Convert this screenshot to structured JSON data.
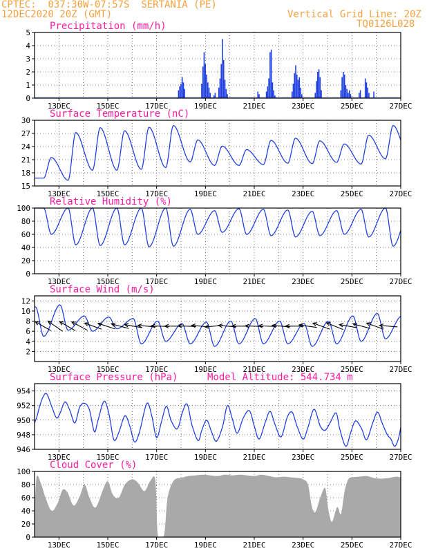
{
  "header": {
    "line1": "CPTEC:  037:30W-07:57S  SERTANIA (PE)",
    "line2": "12DEC2020 20Z (GMT)",
    "grid_note": "Vertical Grid Line: 20Z",
    "code": "TQ0126L028"
  },
  "colors": {
    "header": "#f5a040",
    "title": "#ff1aa0",
    "series": "#2040e0",
    "cloud": "#a9a9a9",
    "wind_arrow": "#000000",
    "grid": "#000000"
  },
  "x_axis": {
    "start_day": 12.0,
    "end_day": 27.0,
    "tick_labels": [
      {
        "day": 13,
        "label": "13DEC"
      },
      {
        "day": 15,
        "label": "15DEC"
      },
      {
        "day": 17,
        "label": "17DEC"
      },
      {
        "day": 19,
        "label": "19DEC"
      },
      {
        "day": 21,
        "label": "21DEC"
      },
      {
        "day": 23,
        "label": "23DEC"
      },
      {
        "day": 25,
        "label": "25DEC"
      },
      {
        "day": 27,
        "label": "27DEC"
      }
    ]
  },
  "chart_data": [
    {
      "id": "precip",
      "type": "bar",
      "title": "Precipitation (mm/h)",
      "ylim": [
        0,
        5
      ],
      "yticks": [
        0,
        1,
        2,
        3,
        4,
        5
      ],
      "points": [
        [
          17.9,
          0.6
        ],
        [
          17.95,
          0.9
        ],
        [
          18.0,
          1.1
        ],
        [
          18.05,
          1.6
        ],
        [
          18.1,
          1.2
        ],
        [
          18.15,
          0.7
        ],
        [
          18.85,
          1.1
        ],
        [
          18.9,
          2.4
        ],
        [
          18.95,
          3.5
        ],
        [
          19.0,
          2.6
        ],
        [
          19.05,
          1.8
        ],
        [
          19.1,
          1.2
        ],
        [
          19.15,
          0.8
        ],
        [
          19.2,
          0.4
        ],
        [
          19.35,
          0.2
        ],
        [
          19.4,
          0.4
        ],
        [
          19.55,
          0.8
        ],
        [
          19.6,
          1.5
        ],
        [
          19.65,
          2.6
        ],
        [
          19.7,
          4.5
        ],
        [
          19.75,
          2.9
        ],
        [
          19.8,
          1.4
        ],
        [
          19.85,
          0.7
        ],
        [
          19.9,
          0.3
        ],
        [
          21.15,
          0.5
        ],
        [
          21.2,
          0.3
        ],
        [
          21.5,
          0.5
        ],
        [
          21.55,
          0.9
        ],
        [
          21.6,
          1.5
        ],
        [
          21.65,
          3.5
        ],
        [
          21.7,
          3.7
        ],
        [
          21.75,
          1.2
        ],
        [
          21.8,
          0.6
        ],
        [
          21.85,
          0.2
        ],
        [
          22.55,
          0.5
        ],
        [
          22.6,
          1.1
        ],
        [
          22.65,
          1.9
        ],
        [
          22.7,
          2.5
        ],
        [
          22.75,
          1.8
        ],
        [
          22.8,
          1.4
        ],
        [
          22.85,
          1.6
        ],
        [
          22.9,
          0.8
        ],
        [
          22.95,
          0.3
        ],
        [
          23.5,
          0.4
        ],
        [
          23.55,
          1.3
        ],
        [
          23.6,
          2.0
        ],
        [
          23.65,
          2.2
        ],
        [
          23.7,
          1.6
        ],
        [
          23.75,
          0.6
        ],
        [
          24.55,
          0.6
        ],
        [
          24.6,
          1.6
        ],
        [
          24.65,
          2.0
        ],
        [
          24.7,
          1.8
        ],
        [
          24.75,
          1.0
        ],
        [
          24.8,
          0.7
        ],
        [
          24.85,
          0.4
        ],
        [
          24.9,
          0.6
        ],
        [
          24.95,
          0.3
        ],
        [
          25.3,
          0.4
        ],
        [
          25.35,
          0.6
        ],
        [
          25.55,
          1.5
        ],
        [
          25.6,
          1.2
        ],
        [
          25.65,
          0.8
        ],
        [
          25.7,
          0.4
        ],
        [
          25.9,
          0.5
        ]
      ]
    },
    {
      "id": "temp",
      "type": "line",
      "title": "Surface Temperature (nC)",
      "ylim": [
        15,
        30
      ],
      "yticks": [
        15,
        18,
        21,
        24,
        27,
        30
      ],
      "profile": {
        "min_hour": 9.0,
        "max_hour": 16.5
      },
      "daily": [
        {
          "day": 12,
          "min": 16.8,
          "max": 21.5
        },
        {
          "day": 13,
          "min": 16.3,
          "max": 27.2
        },
        {
          "day": 14,
          "min": 18.6,
          "max": 28.3
        },
        {
          "day": 15,
          "min": 18.6,
          "max": 27.6
        },
        {
          "day": 16,
          "min": 18.8,
          "max": 28.4
        },
        {
          "day": 17,
          "min": 19.2,
          "max": 28.8
        },
        {
          "day": 18,
          "min": 20.5,
          "max": 25.5
        },
        {
          "day": 19,
          "min": 19.7,
          "max": 24.1
        },
        {
          "day": 20,
          "min": 19.7,
          "max": 23.3
        },
        {
          "day": 21,
          "min": 19.9,
          "max": 25.4
        },
        {
          "day": 22,
          "min": 20.2,
          "max": 25.9
        },
        {
          "day": 23,
          "min": 20.1,
          "max": 25.3
        },
        {
          "day": 24,
          "min": 20.4,
          "max": 24.6
        },
        {
          "day": 25,
          "min": 20.0,
          "max": 26.6
        },
        {
          "day": 26,
          "min": 21.2,
          "max": 28.8
        },
        {
          "day": 27,
          "min": 21.0,
          "max": 23.0
        }
      ]
    },
    {
      "id": "rh",
      "type": "line",
      "title": "Relative Humidity (%)",
      "ylim": [
        0,
        100
      ],
      "yticks": [
        0,
        20,
        40,
        60,
        80,
        100
      ],
      "profile": {
        "min_hour": 16.5,
        "max_hour": 9.0
      },
      "daily": [
        {
          "day": 12,
          "min": 60,
          "max": 100
        },
        {
          "day": 13,
          "min": 44,
          "max": 100
        },
        {
          "day": 14,
          "min": 43,
          "max": 100
        },
        {
          "day": 15,
          "min": 44,
          "max": 100
        },
        {
          "day": 16,
          "min": 41,
          "max": 100
        },
        {
          "day": 17,
          "min": 42,
          "max": 100
        },
        {
          "day": 18,
          "min": 60,
          "max": 98
        },
        {
          "day": 19,
          "min": 63,
          "max": 96
        },
        {
          "day": 20,
          "min": 60,
          "max": 99
        },
        {
          "day": 21,
          "min": 58,
          "max": 98
        },
        {
          "day": 22,
          "min": 56,
          "max": 97
        },
        {
          "day": 23,
          "min": 58,
          "max": 95
        },
        {
          "day": 24,
          "min": 60,
          "max": 96
        },
        {
          "day": 25,
          "min": 56,
          "max": 98
        },
        {
          "day": 26,
          "min": 42,
          "max": 100
        },
        {
          "day": 27,
          "min": 76,
          "max": 98
        }
      ]
    },
    {
      "id": "wind",
      "type": "line",
      "title": "Surface Wind (m/s)",
      "ylim": [
        0,
        13
      ],
      "yticks": [
        2,
        4,
        6,
        8,
        10,
        12
      ],
      "y_grid": [
        2,
        4,
        6,
        8,
        10,
        12
      ],
      "profile": {
        "min_hour": 9.0,
        "max_hour": 1.0
      },
      "daily": [
        {
          "day": 12,
          "min": 5.0,
          "max": 10.8
        },
        {
          "day": 13,
          "min": 6.2,
          "max": 11.2
        },
        {
          "day": 14,
          "min": 6.0,
          "max": 9.0
        },
        {
          "day": 15,
          "min": 6.5,
          "max": 8.8
        },
        {
          "day": 16,
          "min": 3.5,
          "max": 8.5
        },
        {
          "day": 17,
          "min": 4.0,
          "max": 8.0
        },
        {
          "day": 18,
          "min": 3.5,
          "max": 7.5
        },
        {
          "day": 19,
          "min": 3.0,
          "max": 7.8
        },
        {
          "day": 20,
          "min": 3.5,
          "max": 8.0
        },
        {
          "day": 21,
          "min": 3.5,
          "max": 8.5
        },
        {
          "day": 22,
          "min": 3.5,
          "max": 8.0
        },
        {
          "day": 23,
          "min": 3.0,
          "max": 7.5
        },
        {
          "day": 24,
          "min": 3.5,
          "max": 8.0
        },
        {
          "day": 25,
          "min": 4.0,
          "max": 9.0
        },
        {
          "day": 26,
          "min": 4.5,
          "max": 9.5
        },
        {
          "day": 27,
          "min": 8.0,
          "max": 9.0
        }
      ],
      "arrows": [
        {
          "day": 12.35,
          "from_deg": 120
        },
        {
          "day": 12.85,
          "from_deg": 125
        },
        {
          "day": 13.35,
          "from_deg": 120
        },
        {
          "day": 13.85,
          "from_deg": 118
        },
        {
          "day": 14.4,
          "from_deg": 110
        },
        {
          "day": 14.95,
          "from_deg": 108
        },
        {
          "day": 15.5,
          "from_deg": 105
        },
        {
          "day": 16.05,
          "from_deg": 100
        },
        {
          "day": 16.6,
          "from_deg": 95
        },
        {
          "day": 17.15,
          "from_deg": 92
        },
        {
          "day": 17.7,
          "from_deg": 90
        },
        {
          "day": 18.25,
          "from_deg": 92
        },
        {
          "day": 18.8,
          "from_deg": 95
        },
        {
          "day": 19.35,
          "from_deg": 85
        },
        {
          "day": 19.9,
          "from_deg": 95
        },
        {
          "day": 20.45,
          "from_deg": 90
        },
        {
          "day": 21.0,
          "from_deg": 92
        },
        {
          "day": 21.55,
          "from_deg": 92
        },
        {
          "day": 22.1,
          "from_deg": 95
        },
        {
          "day": 22.65,
          "from_deg": 90
        },
        {
          "day": 23.2,
          "from_deg": 98
        },
        {
          "day": 23.75,
          "from_deg": 110
        },
        {
          "day": 24.3,
          "from_deg": 112
        },
        {
          "day": 24.85,
          "from_deg": 100
        },
        {
          "day": 25.4,
          "from_deg": 105
        },
        {
          "day": 25.95,
          "from_deg": 110
        },
        {
          "day": 26.5,
          "from_deg": 95
        }
      ]
    },
    {
      "id": "pres",
      "type": "line",
      "title": "Surface Pressure (hPa)",
      "altitude_label": "Model Altitude: 544.734 m",
      "ylim": [
        946,
        955
      ],
      "yticks": [
        946,
        948,
        950,
        952,
        954
      ],
      "points": [
        [
          12.0,
          949.6
        ],
        [
          12.1,
          950.5
        ],
        [
          12.2,
          951.8
        ],
        [
          12.35,
          953.2
        ],
        [
          12.5,
          953.6
        ],
        [
          12.7,
          951.9
        ],
        [
          12.9,
          950.3
        ],
        [
          13.05,
          951.0
        ],
        [
          13.25,
          952.5
        ],
        [
          13.45,
          951.3
        ],
        [
          13.65,
          949.6
        ],
        [
          13.85,
          951.8
        ],
        [
          14.05,
          952.3
        ],
        [
          14.25,
          951.4
        ],
        [
          14.45,
          948.4
        ],
        [
          14.6,
          950.0
        ],
        [
          14.85,
          952.6
        ],
        [
          15.05,
          950.8
        ],
        [
          15.25,
          947.3
        ],
        [
          15.45,
          948.3
        ],
        [
          15.7,
          950.6
        ],
        [
          15.9,
          949.2
        ],
        [
          16.1,
          947.0
        ],
        [
          16.3,
          948.4
        ],
        [
          16.6,
          952.3
        ],
        [
          16.8,
          950.6
        ],
        [
          17.0,
          947.6
        ],
        [
          17.2,
          949.8
        ],
        [
          17.4,
          951.9
        ],
        [
          17.6,
          949.9
        ],
        [
          17.85,
          948.8
        ],
        [
          18.05,
          951.0
        ],
        [
          18.25,
          952.2
        ],
        [
          18.45,
          949.3
        ],
        [
          18.7,
          947.2
        ],
        [
          18.85,
          948.6
        ],
        [
          19.05,
          950.0
        ],
        [
          19.25,
          948.4
        ],
        [
          19.45,
          947.1
        ],
        [
          19.7,
          949.1
        ],
        [
          19.9,
          952.0
        ],
        [
          20.1,
          950.2
        ],
        [
          20.3,
          948.2
        ],
        [
          20.55,
          950.3
        ],
        [
          20.8,
          951.3
        ],
        [
          21.0,
          949.2
        ],
        [
          21.2,
          947.4
        ],
        [
          21.45,
          949.7
        ],
        [
          21.65,
          951.2
        ],
        [
          21.85,
          949.4
        ],
        [
          22.1,
          947.7
        ],
        [
          22.35,
          950.4
        ],
        [
          22.55,
          951.1
        ],
        [
          22.75,
          949.2
        ],
        [
          23.0,
          947.4
        ],
        [
          23.2,
          949.0
        ],
        [
          23.45,
          951.5
        ],
        [
          23.7,
          949.2
        ],
        [
          23.9,
          948.6
        ],
        [
          24.1,
          949.6
        ],
        [
          24.35,
          951.0
        ],
        [
          24.5,
          948.8
        ],
        [
          24.75,
          946.4
        ],
        [
          24.95,
          948.3
        ],
        [
          25.15,
          949.9
        ],
        [
          25.4,
          948.8
        ],
        [
          25.6,
          947.3
        ],
        [
          25.85,
          949.6
        ],
        [
          26.05,
          951.1
        ],
        [
          26.25,
          949.5
        ],
        [
          26.45,
          948.0
        ],
        [
          26.6,
          947.4
        ],
        [
          26.75,
          946.4
        ],
        [
          26.9,
          947.4
        ],
        [
          27.0,
          949.0
        ]
      ]
    },
    {
      "id": "cloud",
      "type": "area",
      "title": "Cloud Cover (%)",
      "ylim": [
        0,
        100
      ],
      "yticks": [
        0,
        20,
        40,
        60,
        80,
        100
      ],
      "points": [
        [
          12.0,
          33
        ],
        [
          12.08,
          91
        ],
        [
          12.25,
          83
        ],
        [
          12.45,
          60
        ],
        [
          12.7,
          40
        ],
        [
          12.95,
          52
        ],
        [
          13.15,
          72
        ],
        [
          13.35,
          68
        ],
        [
          13.6,
          48
        ],
        [
          13.85,
          62
        ],
        [
          14.05,
          80
        ],
        [
          14.25,
          60
        ],
        [
          14.5,
          45
        ],
        [
          14.8,
          72
        ],
        [
          15.0,
          85
        ],
        [
          15.2,
          65
        ],
        [
          15.45,
          60
        ],
        [
          15.7,
          80
        ],
        [
          16.0,
          88
        ],
        [
          16.25,
          82
        ],
        [
          16.5,
          70
        ],
        [
          16.75,
          86
        ],
        [
          16.95,
          86
        ],
        [
          17.05,
          2
        ],
        [
          17.3,
          2
        ],
        [
          17.45,
          60
        ],
        [
          17.7,
          86
        ],
        [
          18.0,
          90
        ],
        [
          18.3,
          93
        ],
        [
          18.6,
          94
        ],
        [
          18.9,
          95
        ],
        [
          19.2,
          94
        ],
        [
          19.5,
          93
        ],
        [
          19.8,
          95
        ],
        [
          20.1,
          94
        ],
        [
          20.4,
          95
        ],
        [
          20.7,
          94
        ],
        [
          21.0,
          93
        ],
        [
          21.3,
          95
        ],
        [
          21.6,
          93
        ],
        [
          21.9,
          91
        ],
        [
          22.2,
          92
        ],
        [
          22.5,
          91
        ],
        [
          22.8,
          90
        ],
        [
          23.0,
          88
        ],
        [
          23.2,
          80
        ],
        [
          23.35,
          48
        ],
        [
          23.5,
          38
        ],
        [
          23.7,
          60
        ],
        [
          23.9,
          75
        ],
        [
          24.0,
          50
        ],
        [
          24.1,
          30
        ],
        [
          24.2,
          24
        ],
        [
          24.4,
          46
        ],
        [
          24.55,
          35
        ],
        [
          24.7,
          70
        ],
        [
          24.85,
          88
        ],
        [
          25.0,
          91
        ],
        [
          25.3,
          92
        ],
        [
          25.6,
          93
        ],
        [
          25.9,
          90
        ],
        [
          26.2,
          89
        ],
        [
          26.5,
          90
        ],
        [
          26.8,
          92
        ],
        [
          27.0,
          91
        ]
      ]
    }
  ]
}
